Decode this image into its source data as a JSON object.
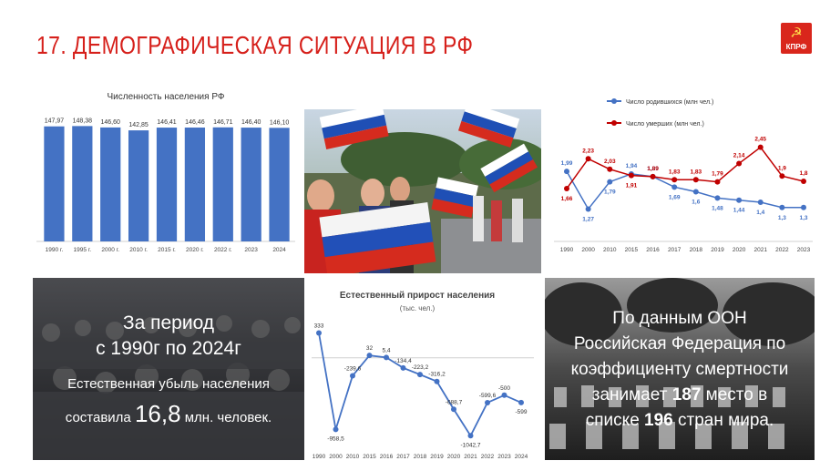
{
  "title": "17. ДЕМОГРАФИЧЕСКАЯ СИТУАЦИЯ В РФ",
  "logo": {
    "symbol": "☭",
    "text": "КПРФ"
  },
  "population_chart": {
    "title": "Численность населения РФ",
    "chart_data": {
      "type": "bar",
      "title": "Численность населения РФ",
      "categories": [
        "1990 г.",
        "1995 г.",
        "2000 г.",
        "2010 г.",
        "2015 г.",
        "2020 г.",
        "2022 г.",
        "2023",
        "2024"
      ],
      "values": [
        147.97,
        148.38,
        146.6,
        142.85,
        146.41,
        146.46,
        146.71,
        146.4,
        146.1
      ],
      "value_labels": [
        "147,97",
        "148,38",
        "146,60",
        "142,85",
        "146,41",
        "146,46",
        "146,71",
        "146,40",
        "146,10"
      ],
      "color": "#4472c4"
    }
  },
  "births_deaths_chart": {
    "chart_data": {
      "type": "line",
      "categories": [
        "1990",
        "2000",
        "2010",
        "2015",
        "2016",
        "2017",
        "2018",
        "2019",
        "2020",
        "2021",
        "2022",
        "2023"
      ],
      "series": [
        {
          "name": "Число родившихся (млн чел.)",
          "color": "#4472c4",
          "values": [
            1.99,
            1.27,
            1.79,
            1.94,
            1.89,
            1.69,
            1.6,
            1.48,
            1.44,
            1.4,
            1.3,
            1.3
          ],
          "labels": [
            "1,99",
            "1,27",
            "1,79",
            "1,94",
            "1,89",
            "1,69",
            "1,6",
            "1,48",
            "1,44",
            "1,4",
            "1,3",
            "1,3"
          ]
        },
        {
          "name": "Число умерших (млн чел.)",
          "color": "#c00000",
          "values": [
            1.66,
            2.23,
            2.03,
            1.91,
            1.89,
            1.83,
            1.83,
            1.79,
            2.14,
            2.45,
            1.9,
            1.8
          ],
          "labels": [
            "1,66",
            "2,23",
            "2,03",
            "1,91",
            "1,89",
            "1,83",
            "1,83",
            "1,79",
            "2,14",
            "2,45",
            "1,9",
            "1,8"
          ]
        }
      ]
    }
  },
  "natural_growth_chart": {
    "title": "Естественный прирост населения",
    "subtitle": "(тыс. чел.)",
    "chart_data": {
      "type": "line",
      "title": "Естественный прирост населения",
      "categories": [
        "1990",
        "2000",
        "2010",
        "2015",
        "2016",
        "2017",
        "2018",
        "2019",
        "2020",
        "2021",
        "2022",
        "2023",
        "2024"
      ],
      "values": [
        333,
        -958.5,
        -239.6,
        32,
        5.4,
        -134.4,
        -223.2,
        -316.2,
        -688.7,
        -1042.7,
        -599.6,
        -500,
        -599
      ],
      "labels": [
        "333",
        "-958,5",
        "-239,6",
        "32",
        "5,4",
        "-134,4",
        "-223,2",
        "-316,2",
        "-688,7",
        "-1042,7",
        "-599,6",
        "-500",
        "-599"
      ],
      "color": "#4472c4"
    }
  },
  "period_panel": {
    "line1": "За период",
    "line2": "с 1990г по 2024г",
    "line3": "Естественная убыль населения",
    "line4a": "составила",
    "line4b": "16,8",
    "line4c": "млн. человек."
  },
  "un_panel": {
    "line1": "По данным ООН",
    "line2": "Российская Федерация по",
    "line3": "коэффициенту смертности",
    "line4a": "занимает",
    "line4b": "187",
    "line4c": "место в",
    "line5a": "списке",
    "line5b": "196",
    "line5c": "стран мира."
  }
}
